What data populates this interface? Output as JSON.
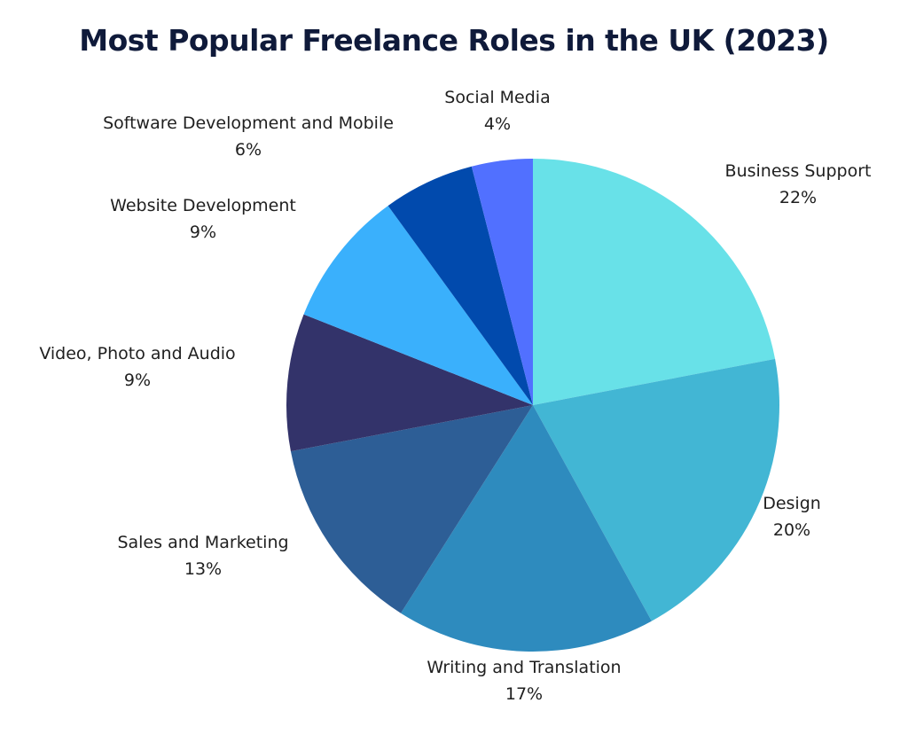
{
  "chart_data": {
    "type": "pie",
    "title": "Most Popular Freelance Roles in the UK (2023)",
    "start_angle": "12 o'clock",
    "direction": "clockwise",
    "slices": [
      {
        "label": "Business Support",
        "value": 22,
        "value_label": "22%",
        "color": "#68e1e8"
      },
      {
        "label": "Design",
        "value": 20,
        "value_label": "20%",
        "color": "#42b6d4"
      },
      {
        "label": "Writing and Translation",
        "value": 17,
        "value_label": "17%",
        "color": "#2e8bbe"
      },
      {
        "label": "Sales and Marketing",
        "value": 13,
        "value_label": "13%",
        "color": "#2d5e96"
      },
      {
        "label": "Video, Photo and Audio",
        "value": 9,
        "value_label": "9%",
        "color": "#33336a"
      },
      {
        "label": "Website Development",
        "value": 9,
        "value_label": "9%",
        "color": "#3ab0fc"
      },
      {
        "label": "Software Development and Mobile",
        "value": 6,
        "value_label": "6%",
        "color": "#014aad"
      },
      {
        "label": "Social Media",
        "value": 4,
        "value_label": "4%",
        "color": "#5170ff"
      }
    ]
  }
}
